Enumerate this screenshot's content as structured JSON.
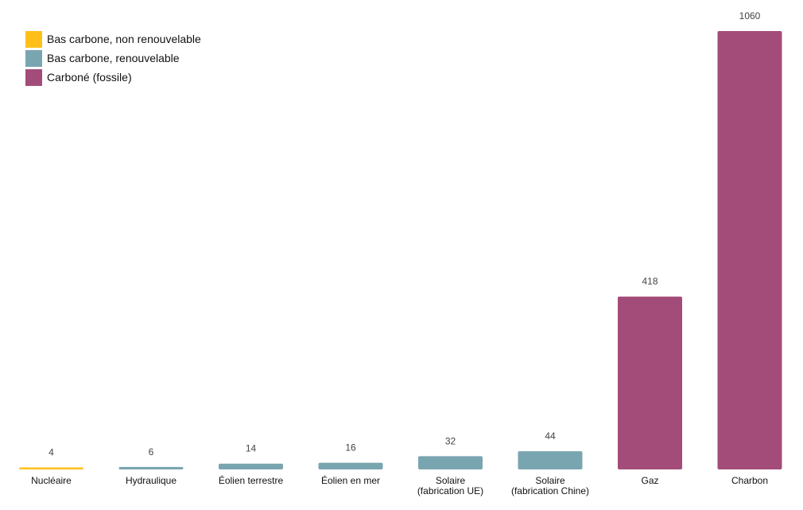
{
  "colors": {
    "nuclear": "#FFBF1A",
    "renewable": "#79A5B0",
    "fossil": "#A44C79"
  },
  "legend": [
    {
      "label": "Bas carbone, non renouvelable",
      "color_key": "nuclear"
    },
    {
      "label": "Bas carbone, renouvelable",
      "color_key": "renewable"
    },
    {
      "label": "Carboné (fossile)",
      "color_key": "fossil"
    }
  ],
  "chart_data": {
    "type": "bar",
    "title": "",
    "xlabel": "",
    "ylabel": "",
    "ylim": [
      0,
      1060
    ],
    "grid": false,
    "legend_position": "top-left",
    "categories": [
      [
        "Nucléaire"
      ],
      [
        "Hydraulique"
      ],
      [
        "Éolien terrestre"
      ],
      [
        "Éolien en mer"
      ],
      [
        "Solaire",
        "(fabrication UE)"
      ],
      [
        "Solaire",
        "(fabrication Chine)"
      ],
      [
        "Gaz"
      ],
      [
        "Charbon"
      ]
    ],
    "values": [
      4,
      6,
      14,
      16,
      32,
      44,
      418,
      1060
    ],
    "value_labels": [
      "4",
      "6",
      "14",
      "16",
      "32",
      "44",
      "418",
      "1060"
    ],
    "color_keys": [
      "nuclear",
      "renewable",
      "renewable",
      "renewable",
      "renewable",
      "renewable",
      "fossil",
      "fossil"
    ]
  }
}
